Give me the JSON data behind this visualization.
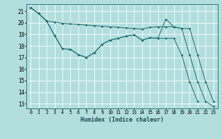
{
  "xlabel": "Humidex (Indice chaleur)",
  "bg_color": "#b2dede",
  "grid_color": "#ffffff",
  "line_color": "#1a6b6b",
  "xlim": [
    -0.5,
    23.5
  ],
  "ylim": [
    12.6,
    21.6
  ],
  "xticks": [
    0,
    1,
    2,
    3,
    4,
    5,
    6,
    7,
    8,
    9,
    10,
    11,
    12,
    13,
    14,
    15,
    16,
    17,
    18,
    19,
    20,
    21,
    22,
    23
  ],
  "yticks": [
    13,
    14,
    15,
    16,
    17,
    18,
    19,
    20,
    21
  ],
  "line1_x": [
    0,
    1,
    2,
    3,
    4,
    5,
    6,
    7,
    8,
    9,
    10,
    11,
    12,
    13,
    14,
    15,
    16,
    17,
    18,
    19,
    20,
    21,
    22,
    23
  ],
  "line1_y": [
    21.3,
    20.8,
    20.15,
    20.05,
    19.95,
    19.9,
    19.85,
    19.8,
    19.75,
    19.7,
    19.65,
    19.6,
    19.55,
    19.5,
    19.45,
    19.6,
    19.65,
    19.65,
    19.65,
    19.5,
    19.5,
    17.2,
    14.9,
    13.2
  ],
  "line2_x": [
    0,
    1,
    2,
    3,
    4,
    5,
    6,
    7,
    8,
    9,
    10,
    11,
    12,
    13,
    14,
    15,
    16,
    17,
    18,
    19,
    20,
    21,
    22,
    23
  ],
  "line2_y": [
    21.3,
    20.8,
    20.15,
    18.9,
    17.75,
    17.7,
    17.25,
    17.0,
    17.4,
    18.15,
    18.5,
    18.65,
    18.85,
    18.95,
    18.5,
    18.7,
    18.65,
    18.65,
    18.65,
    17.2,
    14.9,
    13.2,
    null,
    null
  ],
  "line3_x": [
    0,
    1,
    2,
    3,
    4,
    5,
    6,
    7,
    8,
    9,
    10,
    11,
    12,
    13,
    14,
    15,
    16,
    17,
    18,
    19,
    20,
    21,
    22,
    23
  ],
  "line3_y": [
    21.3,
    20.8,
    20.15,
    18.9,
    17.75,
    17.7,
    17.25,
    17.0,
    17.4,
    18.15,
    18.5,
    18.65,
    18.85,
    18.95,
    18.5,
    18.7,
    18.65,
    20.3,
    19.65,
    19.5,
    17.2,
    14.9,
    13.2,
    12.75
  ]
}
